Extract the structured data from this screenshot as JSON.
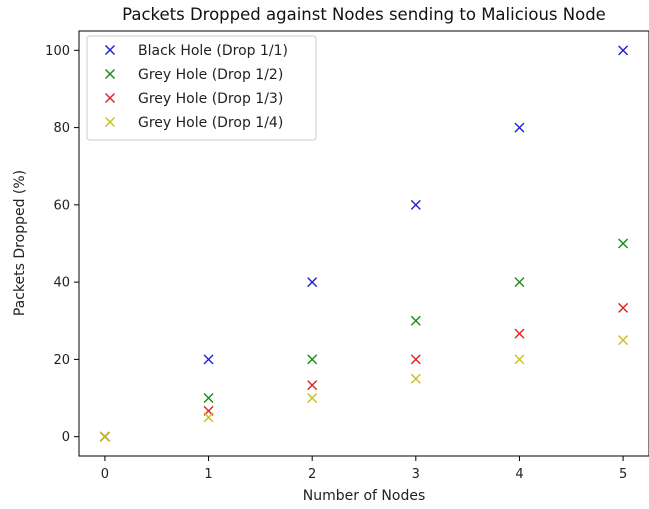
{
  "chart_data": {
    "type": "scatter",
    "title": "Packets Dropped against Nodes sending to Malicious Node",
    "xlabel": "Number of Nodes",
    "ylabel": "Packets Dropped (%)",
    "xlim": [
      -0.25,
      5.25
    ],
    "ylim": [
      -5,
      105
    ],
    "xticks": [
      0,
      1,
      2,
      3,
      4,
      5
    ],
    "yticks": [
      0,
      20,
      40,
      60,
      80,
      100
    ],
    "grid": false,
    "legend_position": "top-left",
    "marker": "x",
    "x": [
      0,
      1,
      2,
      3,
      4,
      5
    ],
    "series": [
      {
        "name": "Black Hole (Drop 1/1)",
        "color": "#1f1fd6",
        "values": [
          0,
          20,
          40,
          60,
          80,
          100
        ]
      },
      {
        "name": "Grey Hole (Drop 1/2)",
        "color": "#1a8a1a",
        "values": [
          0,
          10,
          20,
          30,
          40,
          50
        ]
      },
      {
        "name": "Grey Hole (Drop 1/3)",
        "color": "#e02020",
        "values": [
          0,
          6.67,
          13.33,
          20,
          26.67,
          33.33
        ]
      },
      {
        "name": "Grey Hole (Drop 1/4)",
        "color": "#c8c018",
        "values": [
          0,
          5,
          10,
          15,
          20,
          25
        ]
      }
    ]
  }
}
